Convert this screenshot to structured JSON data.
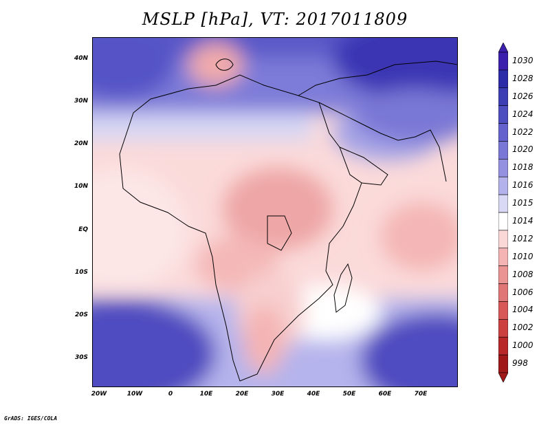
{
  "title": "MSLP [hPa], VT: 2017011809",
  "credit": "GrADS: IGES/COLA",
  "map": {
    "region": "Africa and surrounding oceans",
    "lat_labels": [
      "40N",
      "30N",
      "20N",
      "10N",
      "EQ",
      "10S",
      "20S",
      "30S"
    ],
    "lon_labels": [
      "20W",
      "10W",
      "0",
      "10E",
      "20E",
      "30E",
      "40E",
      "50E",
      "60E",
      "70E"
    ],
    "lon_range": [
      -22,
      80
    ],
    "lat_range": [
      -37,
      45
    ]
  },
  "colorbar": {
    "levels": [
      "1030",
      "1028",
      "1026",
      "1024",
      "1022",
      "1020",
      "1018",
      "1016",
      "1015",
      "1014",
      "1012",
      "1010",
      "1008",
      "1006",
      "1004",
      "1002",
      "1000",
      "998"
    ],
    "colors": [
      "#3d1fae",
      "#2d2ca8",
      "#3c3eb4",
      "#4d4fc0",
      "#6462cc",
      "#7a78d6",
      "#9492e0",
      "#b3b2ea",
      "#d9d9f6",
      "#ffffff",
      "#fbd8d8",
      "#f4b4b4",
      "#ea9494",
      "#e07676",
      "#d85858",
      "#cc4040",
      "#b82828",
      "#a01818"
    ]
  }
}
